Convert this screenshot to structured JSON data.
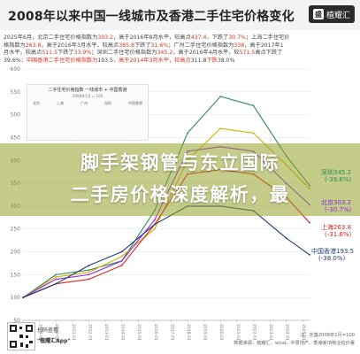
{
  "header": {
    "title": "2008年以来中国一线城市及香港二手住宅价格变化",
    "brand": {
      "icon": "盛",
      "name": "植耀汇"
    }
  },
  "subtitle_lines": [
    [
      "2025年6月，北京二手住宅价格指数为",
      "303.2",
      "，高于2016年8月水平，较高点",
      "437.4",
      "，下跌了",
      "30.7%",
      "；上海二手住宅价"
    ],
    [
      "格指数为",
      "263.8",
      "，高于2016年3月水平，较高点",
      "385.8",
      "下跌了",
      "31.6%",
      "；广州二手住宅价格指数为",
      "338",
      "，高于2017年1"
    ],
    [
      "月水平，较高点",
      "511.5",
      "下跌了",
      "33.9%",
      "；深圳二手住宅价格指数为",
      "345.2",
      "，高于2016年4月水平，较",
      "571.5",
      "高点下跌了"
    ],
    [
      "39.6%",
      "；中国香港二手住宅价格指数为",
      "193.5",
      "，高于2014年3月水平，较高点",
      "311.8",
      "下跌",
      "38.0%",
      ""
    ]
  ],
  "headline": {
    "line1": "脚手架钢管与东立国际",
    "line2": "二手房价格深度解析，最"
  },
  "inset": {
    "title": "二手住宅价格指数 一线城市 + 中国香港",
    "subtitle": "2008年1月 = 100",
    "rows": [
      "北京",
      "上海",
      "广州",
      "深圳",
      "中国香港"
    ]
  },
  "qr": {
    "caption": "扫码查看",
    "app": "\"植耀汇App\""
  },
  "footer": {
    "line1": "注：定基2008年1月=100",
    "line2": "数据来源：植耀汇、wind、中原地产、香港差饷物业估价署"
  },
  "chart_data": {
    "type": "line",
    "x": [
      "2008-01",
      "2010-01",
      "2012-01",
      "2014-01",
      "2016-01",
      "2018-01",
      "2020-01",
      "2022-01",
      "2024-01",
      "2025-06"
    ],
    "ylim": [
      50,
      600
    ],
    "yticks": [
      50,
      100,
      150,
      200,
      250,
      300,
      350,
      400,
      450,
      500,
      550,
      600
    ],
    "xticks": [
      "2008-01",
      "2009-01",
      "2010-01",
      "2011-01",
      "2012-01",
      "2013-01",
      "2014-01",
      "2015-01",
      "2016-01",
      "2017-01",
      "2018-01",
      "2019-01",
      "2020-01",
      "2021-01",
      "2022-01",
      "2023-01",
      "2024-01",
      "2025-01"
    ],
    "series": [
      {
        "name": "深圳",
        "color": "#2e8b57",
        "values": [
          100,
          150,
          160,
          180,
          290,
          460,
          540,
          520,
          410,
          345.2
        ]
      },
      {
        "name": "广州",
        "color": "#d4b000",
        "values": [
          100,
          145,
          155,
          190,
          250,
          400,
          470,
          460,
          390,
          338
        ]
      },
      {
        "name": "北京",
        "color": "#8a2be2",
        "values": [
          100,
          140,
          150,
          180,
          270,
          420,
          430,
          420,
          350,
          303.2
        ]
      },
      {
        "name": "上海",
        "color": "#e02020",
        "values": [
          100,
          130,
          140,
          170,
          260,
          370,
          380,
          370,
          320,
          263.8
        ]
      },
      {
        "name": "中国香港",
        "color": "#1f3b73",
        "values": [
          100,
          130,
          170,
          200,
          260,
          300,
          300,
          290,
          230,
          193.5
        ]
      }
    ],
    "end_labels": [
      {
        "city": "深圳345.2",
        "change": "(-39.6%)",
        "color": "#2e8b57"
      },
      {
        "city": "北京303.2",
        "change": "(-30.7%)",
        "color": "#8a2be2"
      },
      {
        "city": "上海263.8",
        "change": "(-31.6%)",
        "color": "#e02020"
      },
      {
        "city": "中国香港193.5",
        "change": "(-38.0%)",
        "color": "#1f3b73"
      }
    ]
  },
  "colors": {
    "overlay": "#96a028",
    "grid": "#e6e6e6",
    "axis_text": "#777777"
  }
}
